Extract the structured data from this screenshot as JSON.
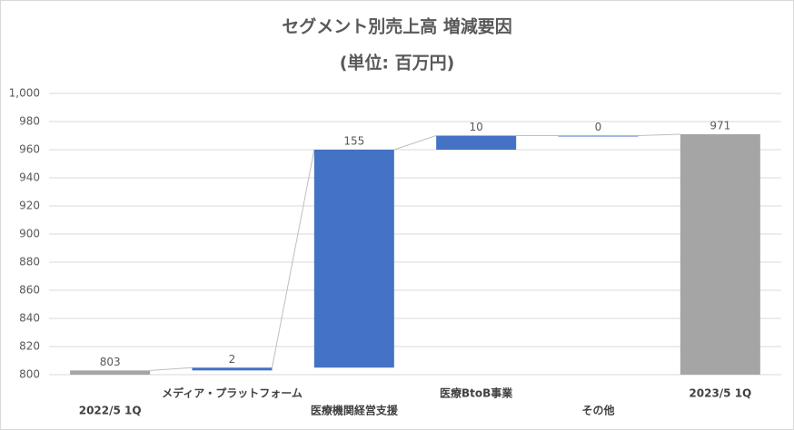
{
  "chart_data": {
    "type": "waterfall",
    "title": "セグメント別売上高 増減要因",
    "subtitle": "(単位: 百万円)",
    "categories": [
      "2022/5 1Q",
      "メディア・プラットフォーム",
      "医療機関経営支援",
      "医療BtoB事業",
      "その他",
      "2023/5 1Q"
    ],
    "values": [
      803,
      2,
      155,
      10,
      0,
      971
    ],
    "totals": [
      true,
      false,
      false,
      false,
      false,
      true
    ],
    "color": "#4472c4",
    "total_color": "#a5a5a5",
    "ylim": [
      800,
      1000
    ],
    "yticks": [
      800,
      820,
      840,
      860,
      880,
      900,
      920,
      940,
      960,
      980,
      {
        "value": 1000,
        "label": "1,000"
      }
    ],
    "grid": true
  }
}
